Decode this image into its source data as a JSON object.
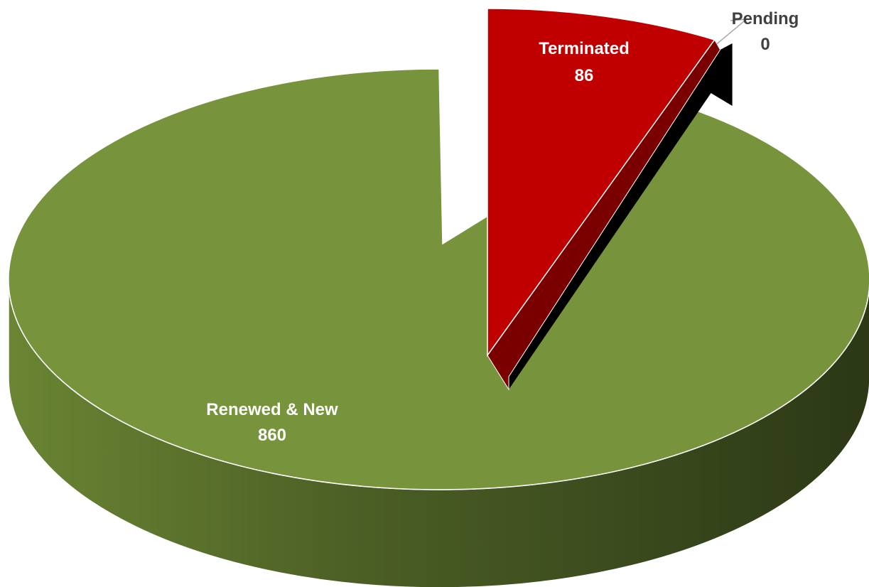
{
  "chart_data": {
    "type": "pie",
    "style": "3d-exploded",
    "slices": [
      {
        "label": "Renewed & New",
        "value": 860,
        "color": "#77933C",
        "exploded": false
      },
      {
        "label": "Terminated",
        "value": 86,
        "color": "#C00000",
        "exploded": true
      },
      {
        "label": "Pending",
        "value": 0,
        "color": "#000000",
        "exploded": true
      }
    ],
    "data_labels": [
      {
        "name": "Renewed & New",
        "value": "860"
      },
      {
        "name": "Terminated",
        "value": "86"
      },
      {
        "name": "Pending",
        "value": "0"
      }
    ],
    "legend": "none",
    "grid": false
  }
}
